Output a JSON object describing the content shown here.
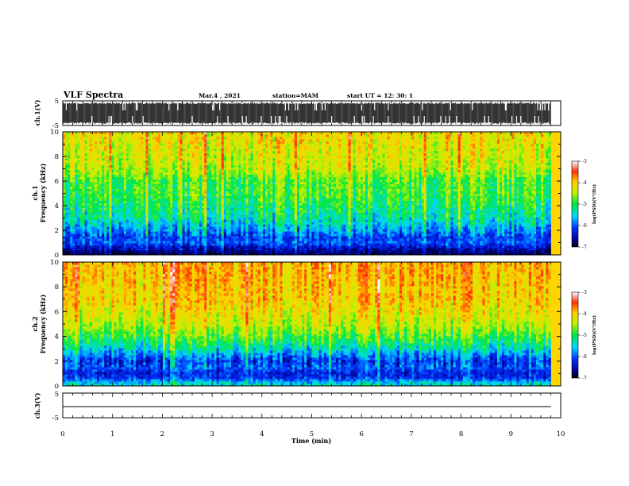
{
  "chart_data": {
    "type": "heatmap",
    "title": "VLF Spectra",
    "header": {
      "date": "Mar.4  , 2021",
      "station": "station=MAM",
      "start_ut": "start UT =   12: 30: 1"
    },
    "xlabel": "Time  (min)",
    "xlim": [
      0,
      10
    ],
    "xticks": [
      "0",
      "1",
      "2",
      "3",
      "4",
      "5",
      "6",
      "7",
      "8",
      "9",
      "10"
    ],
    "data_end_min": 9.8,
    "waveform_panels": [
      {
        "channel": "ch.1",
        "ylabel": "ch.1(V)",
        "ylim": [
          -5,
          5
        ],
        "yticks": [
          "-5",
          "5"
        ],
        "trace": "saturated full-scale broadband signal"
      },
      {
        "channel": "ch.3",
        "ylabel": "ch.3(V)",
        "ylim": [
          -5,
          5
        ],
        "yticks": [
          "-5",
          "5"
        ],
        "trace_level": 0
      }
    ],
    "spectrogram_panels": [
      {
        "channel": "ch.1",
        "ylabel": "Frequency  (kHz)",
        "ylim": [
          0,
          10
        ],
        "yticks": [
          "0",
          "2",
          "4",
          "6",
          "8",
          "10"
        ],
        "log_psd_profile": [
          {
            "f_khz": 0.2,
            "log_psd": -6.6
          },
          {
            "f_khz": 0.6,
            "log_psd": -6.3
          },
          {
            "f_khz": 1.0,
            "log_psd": -5.9
          },
          {
            "f_khz": 1.5,
            "log_psd": -6.0
          },
          {
            "f_khz": 2.0,
            "log_psd": -5.7
          },
          {
            "f_khz": 3.0,
            "log_psd": -5.3
          },
          {
            "f_khz": 4.0,
            "log_psd": -5.1
          },
          {
            "f_khz": 5.0,
            "log_psd": -4.9
          },
          {
            "f_khz": 6.0,
            "log_psd": -4.9
          },
          {
            "f_khz": 7.0,
            "log_psd": -4.5
          },
          {
            "f_khz": 8.0,
            "log_psd": -4.4
          },
          {
            "f_khz": 9.0,
            "log_psd": -4.3
          },
          {
            "f_khz": 10.0,
            "log_psd": -4.2
          }
        ]
      },
      {
        "channel": "ch.2",
        "ylabel": "Frequency  (kHz)",
        "ylim": [
          0,
          10
        ],
        "yticks": [
          "0",
          "2",
          "4",
          "6",
          "8",
          "10"
        ],
        "log_psd_profile": [
          {
            "f_khz": 0.2,
            "log_psd": -5.4
          },
          {
            "f_khz": 0.6,
            "log_psd": -6.0
          },
          {
            "f_khz": 1.0,
            "log_psd": -6.2
          },
          {
            "f_khz": 1.5,
            "log_psd": -5.9
          },
          {
            "f_khz": 2.0,
            "log_psd": -6.1
          },
          {
            "f_khz": 3.0,
            "log_psd": -5.4
          },
          {
            "f_khz": 4.0,
            "log_psd": -4.9
          },
          {
            "f_khz": 5.0,
            "log_psd": -4.5
          },
          {
            "f_khz": 6.0,
            "log_psd": -4.3
          },
          {
            "f_khz": 7.0,
            "log_psd": -4.1
          },
          {
            "f_khz": 8.0,
            "log_psd": -4.1
          },
          {
            "f_khz": 9.0,
            "log_psd": -4.0
          },
          {
            "f_khz": 10.0,
            "log_psd": -4.0
          }
        ]
      }
    ],
    "colorbar": {
      "label": "log(PSD)(V²/Hz)",
      "range": [
        -7,
        -3
      ],
      "ticks": [
        "-3",
        "-4",
        "-5",
        "-6",
        "-7"
      ],
      "colormap": [
        "#000000",
        "#00008c",
        "#0030ff",
        "#00d8ff",
        "#00e840",
        "#c8f000",
        "#ffd000",
        "#ff3000",
        "#ffffff"
      ]
    },
    "grid": false,
    "legend": "none"
  }
}
